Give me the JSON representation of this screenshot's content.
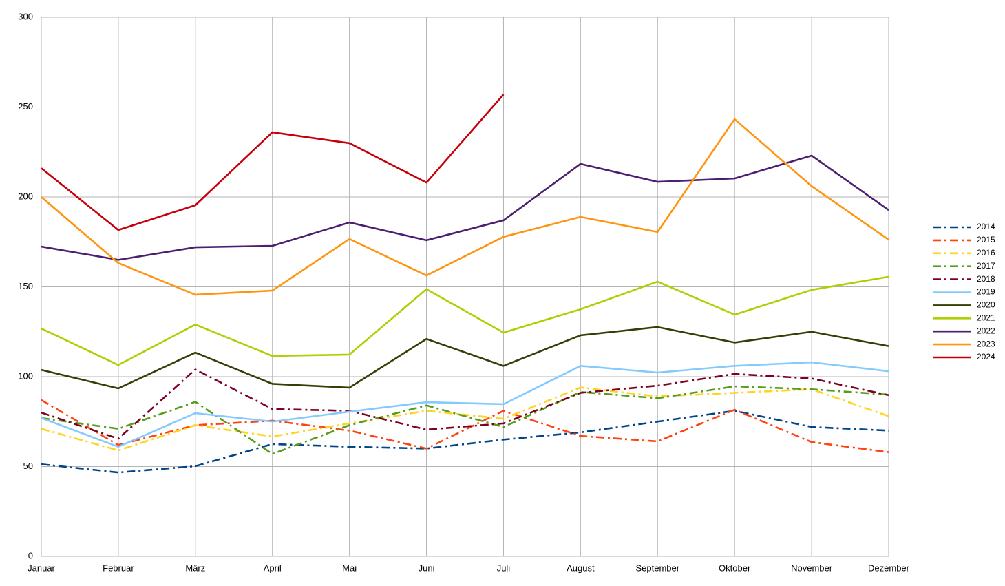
{
  "chart_data": {
    "type": "line",
    "categories": [
      "Januar",
      "Februar",
      "März",
      "April",
      "Mai",
      "Juni",
      "Juli",
      "August",
      "September",
      "Oktober",
      "November",
      "Dezember"
    ],
    "ylim": [
      0,
      300
    ],
    "yticks": [
      0,
      50,
      100,
      150,
      200,
      250,
      300
    ],
    "grid": true,
    "legend": "right",
    "series": [
      {
        "name": "2014",
        "color": "#004586",
        "style": "dashdot",
        "values": [
          51.3,
          46.7,
          50.2,
          62.5,
          61,
          60,
          65,
          69,
          75,
          81,
          72,
          70
        ]
      },
      {
        "name": "2015",
        "color": "#ff420e",
        "style": "dashdot",
        "values": [
          87,
          62,
          73,
          75.5,
          70,
          60,
          81,
          67,
          64,
          81.6,
          63.6,
          58
        ]
      },
      {
        "name": "2016",
        "color": "#ffd320",
        "style": "dashdot",
        "values": [
          71,
          59,
          73,
          66.7,
          74,
          81,
          76.6,
          94,
          89,
          91,
          93,
          78
        ]
      },
      {
        "name": "2017",
        "color": "#579d1c",
        "style": "dashdot",
        "values": [
          77,
          71,
          86,
          57,
          73,
          84,
          72,
          91.5,
          88,
          94.6,
          93,
          90
        ]
      },
      {
        "name": "2018",
        "color": "#7e0021",
        "style": "dashdot",
        "values": [
          80,
          65.5,
          104,
          82,
          81,
          70.5,
          74,
          91,
          95,
          101.5,
          99,
          89.7
        ]
      },
      {
        "name": "2019",
        "color": "#83caff",
        "style": "solid",
        "values": [
          77,
          61,
          79.7,
          75,
          80.5,
          85.8,
          84.7,
          106,
          102.3,
          106,
          108,
          103
        ]
      },
      {
        "name": "2020",
        "color": "#314004",
        "style": "solid",
        "values": [
          103.8,
          93.5,
          113.4,
          96,
          93.9,
          121,
          106,
          123,
          127.6,
          119,
          125,
          117
        ]
      },
      {
        "name": "2021",
        "color": "#aecf00",
        "style": "solid",
        "values": [
          126.8,
          106.5,
          129,
          111.5,
          112.3,
          148.7,
          124.5,
          137.5,
          152.9,
          134.5,
          148.3,
          155.6
        ]
      },
      {
        "name": "2022",
        "color": "#4b1f6f",
        "style": "solid",
        "values": [
          172.4,
          165,
          172,
          172.8,
          185.8,
          175.9,
          187,
          218.4,
          208.4,
          210.3,
          223,
          192.7
        ]
      },
      {
        "name": "2023",
        "color": "#ff950e",
        "style": "solid",
        "values": [
          200,
          163.2,
          145.6,
          147.9,
          176.6,
          156.3,
          177.8,
          188.9,
          180.5,
          243.3,
          206,
          176.2
        ]
      },
      {
        "name": "2024",
        "color": "#c5000b",
        "style": "solid",
        "values": [
          216,
          181.6,
          195.4,
          236,
          229.9,
          208,
          257,
          null,
          null,
          null,
          null,
          null
        ]
      }
    ]
  }
}
